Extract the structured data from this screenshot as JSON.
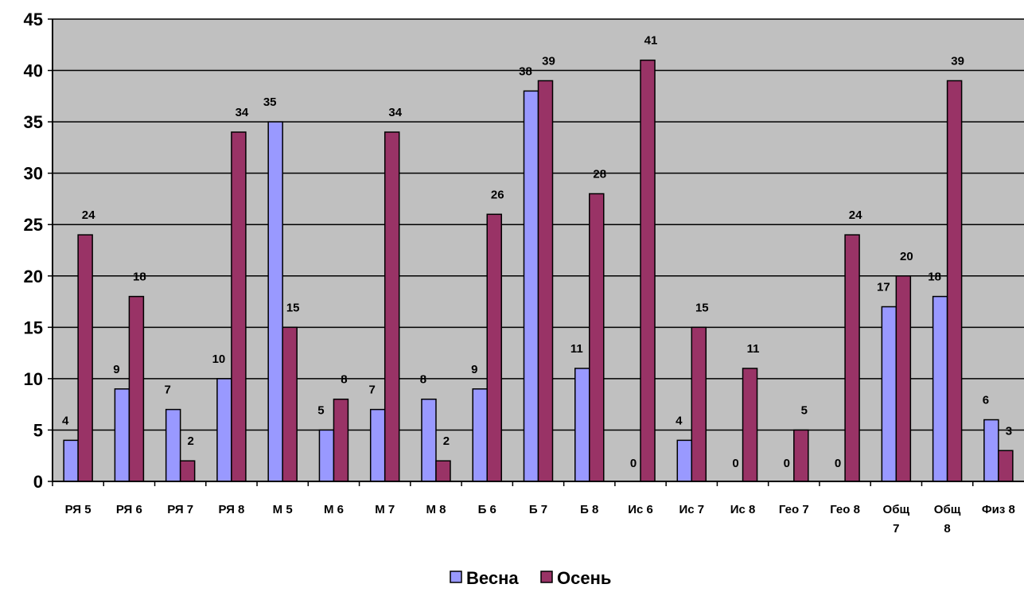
{
  "chart_data": {
    "type": "bar",
    "title": "",
    "xlabel": "",
    "ylabel": "",
    "ylim": [
      0,
      45
    ],
    "yticks": [
      0,
      5,
      10,
      15,
      20,
      25,
      30,
      35,
      40,
      45
    ],
    "grid": true,
    "legend_position": "bottom",
    "plot_background": "#c0c0c0",
    "categories": [
      [
        "РЯ 5"
      ],
      [
        "РЯ 6"
      ],
      [
        "РЯ 7"
      ],
      [
        "РЯ 8"
      ],
      [
        "М 5"
      ],
      [
        "М 6"
      ],
      [
        "М 7"
      ],
      [
        "М 8"
      ],
      [
        "Б 6"
      ],
      [
        "Б 7"
      ],
      [
        "Б 8"
      ],
      [
        "Ис 6"
      ],
      [
        "Ис 7"
      ],
      [
        "Ис 8"
      ],
      [
        "Гео 7"
      ],
      [
        "Гео 8"
      ],
      [
        "Общ",
        "7"
      ],
      [
        "Общ",
        "8"
      ],
      [
        "Физ 8"
      ]
    ],
    "series": [
      {
        "name": "Весна",
        "color": "#9999ff",
        "values": [
          4,
          9,
          7,
          10,
          35,
          5,
          7,
          8,
          9,
          38,
          11,
          0,
          4,
          0,
          0,
          0,
          17,
          18,
          6
        ]
      },
      {
        "name": "Осень",
        "color": "#993366",
        "values": [
          24,
          18,
          2,
          34,
          15,
          8,
          34,
          2,
          26,
          39,
          28,
          41,
          15,
          11,
          5,
          24,
          20,
          39,
          3
        ]
      }
    ]
  }
}
